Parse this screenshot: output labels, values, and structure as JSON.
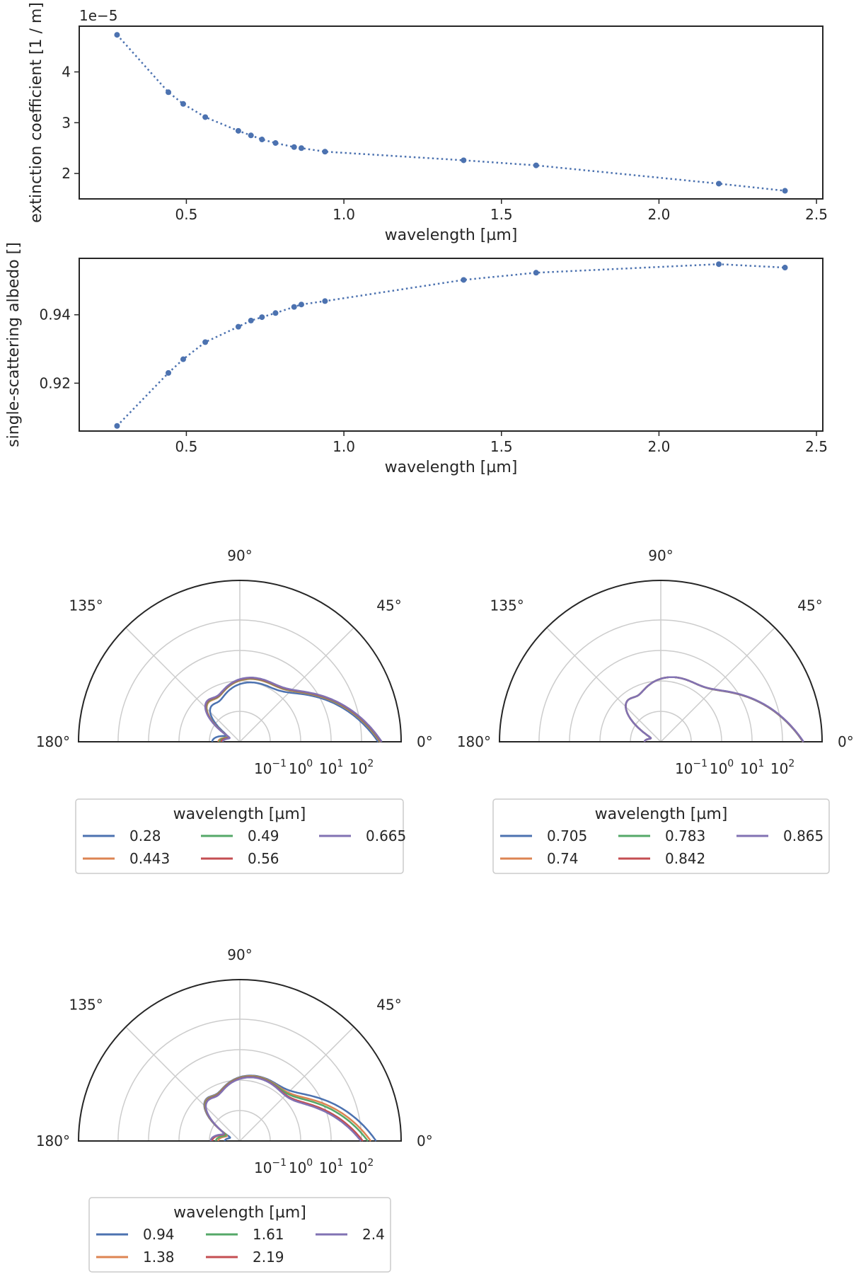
{
  "chart_data": [
    {
      "type": "line",
      "style": "dotted line with markers",
      "x": [
        0.28,
        0.443,
        0.49,
        0.56,
        0.665,
        0.705,
        0.74,
        0.783,
        0.842,
        0.865,
        0.94,
        1.38,
        1.61,
        2.19,
        2.4
      ],
      "values": [
        4.73,
        3.6,
        3.37,
        3.11,
        2.84,
        2.75,
        2.67,
        2.6,
        2.52,
        2.5,
        2.43,
        2.26,
        2.16,
        1.8,
        1.66
      ],
      "scale_label": "1e−5",
      "xlabel": "wavelength [µm]",
      "ylabel": "extinction coefficient [1 / m]",
      "xlim": [
        0.16,
        2.52
      ],
      "ylim": [
        1.5,
        4.9
      ],
      "xticks": [
        "0.5",
        "1.0",
        "1.5",
        "2.0",
        "2.5"
      ],
      "yticks": [
        "2",
        "3",
        "4"
      ],
      "grid": false,
      "color": "#4c72b0"
    },
    {
      "type": "line",
      "style": "dotted line with markers",
      "x": [
        0.28,
        0.443,
        0.49,
        0.56,
        0.665,
        0.705,
        0.74,
        0.783,
        0.842,
        0.865,
        0.94,
        1.38,
        1.61,
        2.19,
        2.4
      ],
      "values": [
        0.9075,
        0.923,
        0.927,
        0.932,
        0.9365,
        0.9383,
        0.9393,
        0.9405,
        0.9423,
        0.943,
        0.944,
        0.9502,
        0.9523,
        0.9548,
        0.9538
      ],
      "xlabel": "wavelength [µm]",
      "ylabel": "single-scattering albedo []",
      "xlim": [
        0.16,
        2.52
      ],
      "ylim": [
        0.906,
        0.9565
      ],
      "xticks": [
        "0.5",
        "1.0",
        "1.5",
        "2.0",
        "2.5"
      ],
      "yticks": [
        "0.92",
        "0.94"
      ],
      "grid": false,
      "color": "#4c72b0"
    },
    {
      "type": "line",
      "projection": "polar half-plane, log radial axis",
      "theta_ticks": [
        "0°",
        "45°",
        "90°",
        "135°",
        "180°"
      ],
      "r_ticks": [
        "10−1",
        "100",
        "101",
        "102"
      ],
      "legend_title": "wavelength [µm]",
      "series": [
        {
          "name": "0.28",
          "color": "#4c72b0",
          "shape": {
            "peak": 1.0,
            "side": 0.2,
            "fwd": 350,
            "back": 0.08
          }
        },
        {
          "name": "0.443",
          "color": "#dd8452",
          "shape": {
            "peak": 1.3,
            "side": 0.3,
            "fwd": 400,
            "back": 0.05
          }
        },
        {
          "name": "0.49",
          "color": "#55a868",
          "shape": {
            "peak": 1.35,
            "side": 0.32,
            "fwd": 420,
            "back": 0.045
          }
        },
        {
          "name": "0.56",
          "color": "#c44e52",
          "shape": {
            "peak": 1.4,
            "side": 0.34,
            "fwd": 440,
            "back": 0.04
          }
        },
        {
          "name": "0.665",
          "color": "#8172b3",
          "shape": {
            "peak": 1.45,
            "side": 0.36,
            "fwd": 460,
            "back": 0.035
          }
        }
      ]
    },
    {
      "type": "line",
      "projection": "polar half-plane, log radial axis",
      "theta_ticks": [
        "0°",
        "45°",
        "90°",
        "135°",
        "180°"
      ],
      "r_ticks": [
        "10−1",
        "100",
        "101",
        "102"
      ],
      "legend_title": "wavelength [µm]",
      "series": [
        {
          "name": "0.705",
          "color": "#4c72b0",
          "shape": {
            "peak": 1.5,
            "side": 0.38,
            "fwd": 470,
            "back": 0.033
          }
        },
        {
          "name": "0.74",
          "color": "#dd8452",
          "shape": {
            "peak": 1.5,
            "side": 0.38,
            "fwd": 475,
            "back": 0.033
          }
        },
        {
          "name": "0.783",
          "color": "#55a868",
          "shape": {
            "peak": 1.5,
            "side": 0.38,
            "fwd": 480,
            "back": 0.033
          }
        },
        {
          "name": "0.842",
          "color": "#c44e52",
          "shape": {
            "peak": 1.5,
            "side": 0.38,
            "fwd": 485,
            "back": 0.033
          }
        },
        {
          "name": "0.865",
          "color": "#8172b3",
          "shape": {
            "peak": 1.5,
            "side": 0.38,
            "fwd": 490,
            "back": 0.033
          }
        }
      ]
    },
    {
      "type": "line",
      "projection": "polar half-plane, log radial axis",
      "theta_ticks": [
        "0°",
        "45°",
        "90°",
        "135°",
        "180°"
      ],
      "r_ticks": [
        "10−1",
        "100",
        "101",
        "102"
      ],
      "legend_title": "wavelength [µm]",
      "series": [
        {
          "name": "0.94",
          "color": "#4c72b0",
          "shape": {
            "peak": 1.6,
            "side": 0.4,
            "fwd": 300,
            "back": 0.03
          }
        },
        {
          "name": "1.38",
          "color": "#dd8452",
          "shape": {
            "peak": 1.55,
            "side": 0.38,
            "fwd": 200,
            "back": 0.05
          }
        },
        {
          "name": "1.61",
          "color": "#55a868",
          "shape": {
            "peak": 1.5,
            "side": 0.36,
            "fwd": 160,
            "back": 0.06
          }
        },
        {
          "name": "2.19",
          "color": "#c44e52",
          "shape": {
            "peak": 1.45,
            "side": 0.34,
            "fwd": 110,
            "back": 0.08
          }
        },
        {
          "name": "2.4",
          "color": "#8172b3",
          "shape": {
            "peak": 1.4,
            "side": 0.33,
            "fwd": 95,
            "back": 0.09
          }
        }
      ]
    }
  ]
}
